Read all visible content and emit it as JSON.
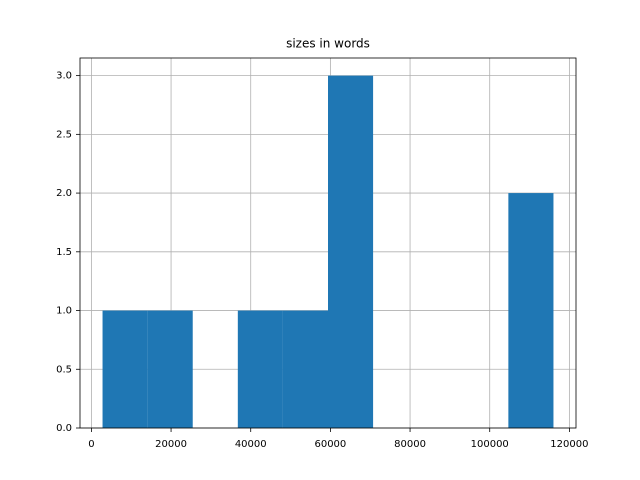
{
  "chart_data": {
    "type": "histogram",
    "title": "sizes in words",
    "bins": [
      2800,
      14120,
      25440,
      36760,
      48080,
      59400,
      70720,
      82040,
      93360,
      104680,
      116000
    ],
    "counts": [
      1,
      1,
      0,
      1,
      1,
      3,
      0,
      0,
      0,
      2
    ],
    "color": "#1f77b4",
    "xlim": [
      -2860,
      121660
    ],
    "xticks": [
      0,
      20000,
      40000,
      60000,
      80000,
      100000,
      120000
    ],
    "ylim": [
      0,
      3.15
    ],
    "yticks": [
      {
        "value": 0,
        "label": "0.0"
      },
      {
        "value": 0.5,
        "label": "0.5"
      },
      {
        "value": 1,
        "label": "1.0"
      },
      {
        "value": 1.5,
        "label": "1.5"
      },
      {
        "value": 2,
        "label": "2.0"
      },
      {
        "value": 2.5,
        "label": "2.5"
      },
      {
        "value": 3,
        "label": "3.0"
      }
    ],
    "grid": true
  }
}
